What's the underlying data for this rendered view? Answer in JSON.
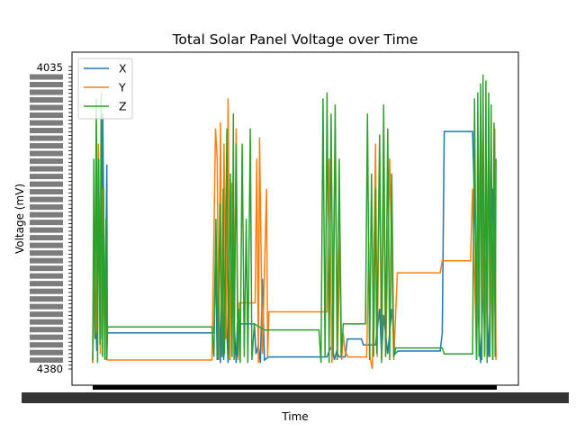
{
  "chart_data": {
    "type": "line",
    "title": "Total Solar Panel Voltage over Time",
    "xlabel": "Time",
    "ylabel": "Voltage (mV)",
    "ytick_top": "4035",
    "ytick_bottom": "4380",
    "x_ticks": "dense, overlapping and illegible",
    "legend": {
      "placement": "top-left",
      "entries": [
        "X",
        "Y",
        "Z"
      ]
    },
    "ylim": [
      0,
      100
    ],
    "xlim": [
      0,
      100
    ],
    "grid": false,
    "series": [
      {
        "name": "X",
        "color": "#1f77b4",
        "points": [
          [
            0,
            98
          ],
          [
            0.5,
            70
          ],
          [
            1,
            94
          ],
          [
            1.5,
            40
          ],
          [
            2,
            90
          ],
          [
            2.5,
            15
          ],
          [
            3,
            96
          ],
          [
            3.5,
            32
          ],
          [
            3.6,
            88
          ],
          [
            30,
            88
          ],
          [
            30.4,
            60
          ],
          [
            30.8,
            97
          ],
          [
            31.2,
            75
          ],
          [
            31.6,
            98
          ],
          [
            32,
            65
          ],
          [
            32.4,
            97
          ],
          [
            33,
            80
          ],
          [
            33.5,
            98
          ],
          [
            34.5,
            72
          ],
          [
            35.5,
            98
          ],
          [
            35.8,
            85
          ],
          [
            40,
            85
          ],
          [
            40.4,
            95
          ],
          [
            41,
            92
          ],
          [
            41.5,
            98
          ],
          [
            42,
            70
          ],
          [
            42.5,
            97
          ],
          [
            43.5,
            96
          ],
          [
            58,
            96
          ],
          [
            58.5,
            94
          ],
          [
            59.3,
            92
          ],
          [
            59.8,
            97
          ],
          [
            60.4,
            94
          ],
          [
            61,
            96
          ],
          [
            62.5,
            96
          ],
          [
            63,
            90
          ],
          [
            66.5,
            90
          ],
          [
            67,
            92
          ],
          [
            70,
            92
          ],
          [
            71,
            80
          ],
          [
            71.5,
            96
          ],
          [
            72,
            82
          ],
          [
            73,
            95
          ],
          [
            74,
            80
          ],
          [
            74.8,
            95
          ],
          [
            75.5,
            94
          ],
          [
            86,
            94
          ],
          [
            86.5,
            88
          ],
          [
            87,
            21
          ],
          [
            94,
            21
          ],
          [
            95,
            70
          ],
          [
            96,
            98
          ],
          [
            97,
            60
          ],
          [
            98,
            96
          ],
          [
            99,
            40
          ],
          [
            99.8,
            96
          ]
        ]
      },
      {
        "name": "Y",
        "color": "#ff7f0e",
        "points": [
          [
            0,
            98
          ],
          [
            0.4,
            60
          ],
          [
            0.9,
            88
          ],
          [
            1.4,
            25
          ],
          [
            1.9,
            95
          ],
          [
            2.4,
            40
          ],
          [
            3,
            96
          ],
          [
            3.6,
            97
          ],
          [
            29.5,
            97
          ],
          [
            30,
            55
          ],
          [
            30.4,
            20
          ],
          [
            30.8,
            30
          ],
          [
            31.2,
            97
          ],
          [
            31.6,
            18
          ],
          [
            32,
            96
          ],
          [
            32.5,
            25
          ],
          [
            33,
            90
          ],
          [
            33.5,
            10
          ],
          [
            34,
            97
          ],
          [
            34.5,
            38
          ],
          [
            35,
            94
          ],
          [
            35.5,
            20
          ],
          [
            36,
            97
          ],
          [
            36.3,
            78
          ],
          [
            40.2,
            78
          ],
          [
            40.6,
            30
          ],
          [
            41,
            98
          ],
          [
            41.3,
            23
          ],
          [
            42,
            95
          ],
          [
            43,
            40
          ],
          [
            43.3,
            96
          ],
          [
            43.6,
            81
          ],
          [
            58,
            81
          ],
          [
            58.5,
            30
          ],
          [
            59.2,
            98
          ],
          [
            60,
            20
          ],
          [
            60.6,
            96
          ],
          [
            61.2,
            55
          ],
          [
            61.6,
            97
          ],
          [
            62,
            88
          ],
          [
            62.4,
            94
          ],
          [
            63.2,
            96
          ],
          [
            67.8,
            96
          ],
          [
            68.3,
            58
          ],
          [
            68.6,
            96
          ],
          [
            69.2,
            100
          ],
          [
            70,
            25
          ],
          [
            70.4,
            96
          ],
          [
            71,
            28
          ],
          [
            71.5,
            97
          ],
          [
            72,
            35
          ],
          [
            72.5,
            96
          ],
          [
            73.5,
            30
          ],
          [
            74.5,
            97
          ],
          [
            75.4,
            68
          ],
          [
            80,
            68
          ],
          [
            86,
            68
          ],
          [
            86.5,
            64
          ],
          [
            93.5,
            64
          ],
          [
            94,
            40
          ],
          [
            95,
            97
          ],
          [
            96,
            15
          ],
          [
            97,
            95
          ],
          [
            98,
            25
          ],
          [
            99,
            97
          ],
          [
            99.5,
            20
          ],
          [
            99.8,
            97
          ]
        ]
      },
      {
        "name": "Z",
        "color": "#2ca02c",
        "points": [
          [
            0,
            97
          ],
          [
            0.3,
            30
          ],
          [
            0.6,
            90
          ],
          [
            0.9,
            10
          ],
          [
            1.2,
            98
          ],
          [
            1.5,
            30
          ],
          [
            1.8,
            92
          ],
          [
            2.1,
            8
          ],
          [
            2.4,
            96
          ],
          [
            2.7,
            40
          ],
          [
            3.0,
            97
          ],
          [
            3.3,
            50
          ],
          [
            3.5,
            97
          ],
          [
            3.7,
            86
          ],
          [
            29.5,
            86
          ],
          [
            30,
            96
          ],
          [
            30.5,
            50
          ],
          [
            31,
            97
          ],
          [
            31.5,
            45
          ],
          [
            32,
            96
          ],
          [
            32.3,
            40
          ],
          [
            32.6,
            95
          ],
          [
            33.2,
            20
          ],
          [
            33.6,
            97
          ],
          [
            34.1,
            35
          ],
          [
            34.5,
            96
          ],
          [
            34.8,
            15
          ],
          [
            35,
            97
          ],
          [
            35.5,
            25
          ],
          [
            35.9,
            96
          ],
          [
            36.2,
            80
          ],
          [
            36.5,
            98
          ],
          [
            37,
            25
          ],
          [
            37.5,
            96
          ],
          [
            38,
            50
          ],
          [
            38.4,
            98
          ],
          [
            39,
            20
          ],
          [
            39.4,
            97
          ],
          [
            40,
            85
          ],
          [
            42.5,
            87
          ],
          [
            56,
            87
          ],
          [
            56.5,
            98
          ],
          [
            57,
            10
          ],
          [
            57.5,
            96
          ],
          [
            58,
            8
          ],
          [
            58.5,
            98
          ],
          [
            59,
            15
          ],
          [
            59.5,
            96
          ],
          [
            60,
            12
          ],
          [
            60.5,
            97
          ],
          [
            61,
            30
          ],
          [
            61.5,
            96
          ],
          [
            62,
            85
          ],
          [
            67.5,
            85
          ],
          [
            68,
            15
          ],
          [
            68.5,
            97
          ],
          [
            69,
            35
          ],
          [
            69.5,
            96
          ],
          [
            70,
            40
          ],
          [
            70.3,
            95
          ],
          [
            71,
            22
          ],
          [
            71.5,
            98
          ],
          [
            72,
            12
          ],
          [
            72.5,
            96
          ],
          [
            73,
            20
          ],
          [
            73.5,
            97
          ],
          [
            74,
            35
          ],
          [
            74.5,
            96
          ],
          [
            75,
            93
          ],
          [
            86.5,
            93
          ],
          [
            87,
            95
          ],
          [
            94,
            95
          ],
          [
            94.5,
            10
          ],
          [
            95,
            97
          ],
          [
            95.3,
            8
          ],
          [
            95.6,
            96
          ],
          [
            96,
            5
          ],
          [
            96.3,
            97
          ],
          [
            96.6,
            2
          ],
          [
            97,
            96
          ],
          [
            97.3,
            4
          ],
          [
            97.6,
            98
          ],
          [
            98,
            8
          ],
          [
            98.3,
            96
          ],
          [
            98.6,
            12
          ],
          [
            99,
            97
          ],
          [
            99.3,
            18
          ],
          [
            99.6,
            96
          ],
          [
            99.8,
            30
          ]
        ]
      }
    ]
  }
}
